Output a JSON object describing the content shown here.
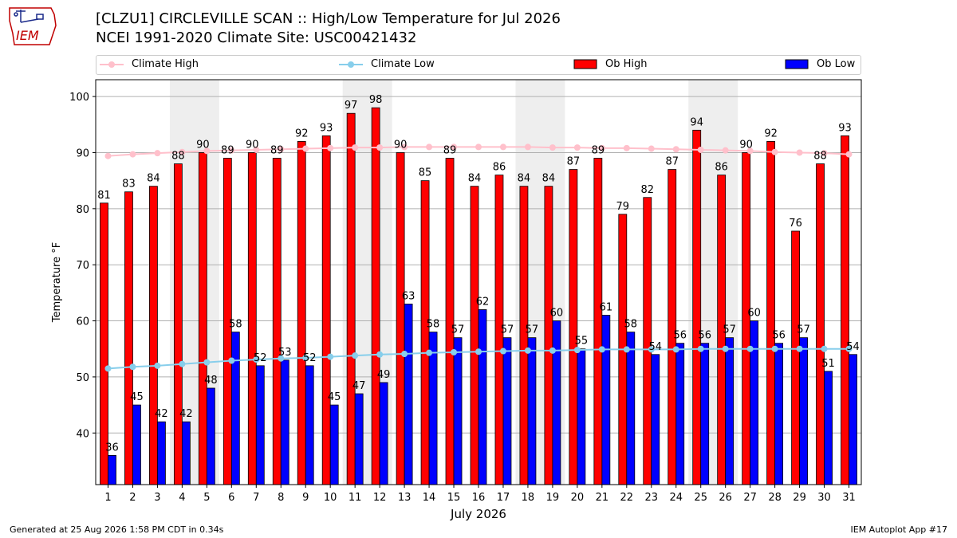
{
  "header": {
    "title": "[CLZU1] CIRCLEVILLE SCAN :: High/Low Temperature for Jul 2026",
    "subtitle": "NCEI 1991-2020 Climate Site: USC00421432",
    "logo_text": "IEM"
  },
  "legend": {
    "items": [
      {
        "label": "Climate High",
        "color": "#ffc0cb",
        "kind": "line"
      },
      {
        "label": "Climate Low",
        "color": "#87ceeb",
        "kind": "line"
      },
      {
        "label": "Ob High",
        "color": "#ff0000",
        "kind": "bar"
      },
      {
        "label": "Ob Low",
        "color": "#0000ff",
        "kind": "bar"
      }
    ]
  },
  "footer": {
    "left": "Generated at 25 Aug 2026 1:58 PM CDT in 0.34s",
    "right": "IEM Autoplot App #17"
  },
  "chart_data": {
    "type": "bar",
    "title": "[CLZU1] CIRCLEVILLE SCAN :: High/Low Temperature for Jul 2026",
    "xlabel": "July 2026",
    "ylabel": "Temperature °F",
    "categories": [
      "1",
      "2",
      "3",
      "4",
      "5",
      "6",
      "7",
      "8",
      "9",
      "10",
      "11",
      "12",
      "13",
      "14",
      "15",
      "16",
      "17",
      "18",
      "19",
      "20",
      "21",
      "22",
      "23",
      "24",
      "25",
      "26",
      "27",
      "28",
      "29",
      "30",
      "31"
    ],
    "ylim": [
      30.8,
      103
    ],
    "yticks": [
      40,
      50,
      60,
      70,
      80,
      90,
      100
    ],
    "grid": true,
    "legend_position": "top",
    "weekend_shading": [
      [
        4,
        5
      ],
      [
        11,
        12
      ],
      [
        18,
        19
      ],
      [
        25,
        26
      ]
    ],
    "series": [
      {
        "name": "Ob High",
        "kind": "bar",
        "color": "#ff0000",
        "values": [
          81,
          83,
          84,
          88,
          90,
          89,
          90,
          89,
          92,
          93,
          97,
          98,
          90,
          85,
          89,
          84,
          86,
          84,
          84,
          87,
          89,
          79,
          82,
          87,
          94,
          86,
          90,
          92,
          76,
          88,
          93
        ]
      },
      {
        "name": "Ob Low",
        "kind": "bar",
        "color": "#0000ff",
        "values": [
          36,
          45,
          42,
          42,
          48,
          58,
          52,
          53,
          52,
          45,
          47,
          49,
          63,
          58,
          57,
          62,
          57,
          57,
          60,
          55,
          61,
          58,
          54,
          56,
          56,
          57,
          60,
          56,
          57,
          51,
          54
        ]
      },
      {
        "name": "Climate High",
        "kind": "line",
        "color": "#ffc0cb",
        "values": [
          89.4,
          89.7,
          89.9,
          90.1,
          90.3,
          90.4,
          90.5,
          90.6,
          90.7,
          90.8,
          90.9,
          90.9,
          91.0,
          91.0,
          91.0,
          91.0,
          91.0,
          91.0,
          90.9,
          90.9,
          90.8,
          90.8,
          90.7,
          90.6,
          90.5,
          90.4,
          90.3,
          90.1,
          90.0,
          89.9,
          89.7
        ]
      },
      {
        "name": "Climate Low",
        "kind": "line",
        "color": "#87ceeb",
        "values": [
          51.5,
          51.8,
          52.0,
          52.3,
          52.6,
          52.9,
          53.1,
          53.3,
          53.4,
          53.6,
          53.8,
          54.0,
          54.1,
          54.3,
          54.4,
          54.5,
          54.6,
          54.7,
          54.7,
          54.8,
          54.9,
          54.9,
          54.9,
          54.9,
          55.0,
          55.0,
          55.0,
          55.0,
          55.0,
          55.0,
          55.0
        ]
      }
    ]
  }
}
